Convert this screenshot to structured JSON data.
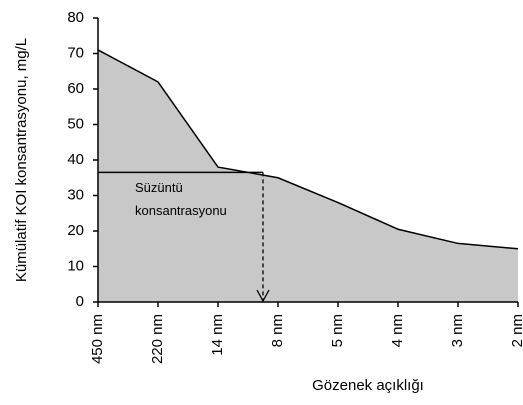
{
  "chart_data": {
    "type": "area",
    "y_label": "Kümülatif KOI konsantrasyonu, mg/L",
    "x_label": "Gözenek açıklığı",
    "categories": [
      "450 nm",
      "220 nm",
      "14 nm",
      "8 nm",
      "5 nm",
      "4 nm",
      "3 nm",
      "2 nm"
    ],
    "values": [
      71,
      62,
      38,
      35,
      28,
      20.5,
      16.5,
      15
    ],
    "color": "#c8c8c8",
    "line_color": "#000000",
    "ylim": [
      0,
      80
    ],
    "yticks": [
      0,
      10,
      20,
      30,
      40,
      50,
      60,
      70,
      80
    ],
    "annotation": {
      "lines": [
        "Süzüntü",
        "konsantrasyonu"
      ],
      "value": 36.5
    }
  }
}
